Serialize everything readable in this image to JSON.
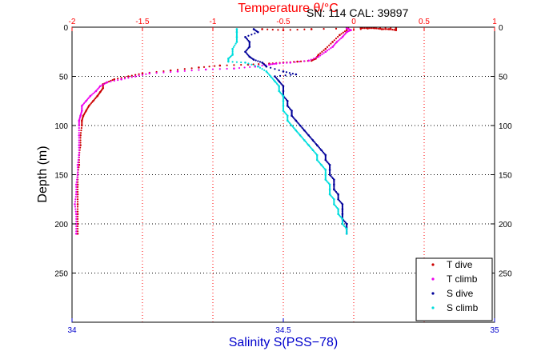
{
  "header": {
    "top_title": "Temperature θ/°C",
    "serial_text": "SN: 114  CAL: 39897"
  },
  "colors": {
    "temperature_axis": "#ff0000",
    "salinity_axis": "#0000cc",
    "grid": "#000000"
  },
  "chart_data": {
    "type": "scatter",
    "y_axis": {
      "label": "Depth (m)",
      "lim": [
        0,
        300
      ],
      "reversed": true,
      "ticks": [
        0,
        50,
        100,
        150,
        200,
        250
      ]
    },
    "x_axis_top": {
      "label": "Temperature θ/°C",
      "lim": [
        -2,
        1
      ],
      "ticks": [
        -2,
        -1.5,
        -1,
        -0.5,
        0,
        0.5,
        1
      ],
      "tick_labels": [
        "-2",
        "-1.5",
        "-1",
        "-0.5",
        "0",
        "0.5",
        "1"
      ]
    },
    "x_axis_bottom": {
      "label": "Salinity S(PSS−78)",
      "lim": [
        34,
        35
      ],
      "ticks": [
        34,
        34.5,
        35
      ],
      "tick_labels": [
        "34",
        "34.5",
        "35"
      ]
    },
    "grid": true,
    "legend": {
      "placement": "bottom-right",
      "entries": [
        "T dive",
        "T climb",
        "S dive",
        "S climb"
      ]
    },
    "series": [
      {
        "name": "T dive",
        "axis": "temperature",
        "color": "#cc0000",
        "points": [
          [
            -0.65,
            2
          ],
          [
            -0.5,
            3
          ],
          [
            -0.3,
            2
          ],
          [
            0.05,
            1
          ],
          [
            0.1,
            1
          ],
          [
            0.15,
            1
          ],
          [
            0.2,
            2
          ],
          [
            0.25,
            2
          ],
          [
            0.3,
            3
          ],
          [
            0.3,
            1
          ],
          [
            0.15,
            1
          ],
          [
            -0.05,
            3
          ],
          [
            -0.1,
            8
          ],
          [
            -0.15,
            15
          ],
          [
            -0.2,
            22
          ],
          [
            -0.25,
            28
          ],
          [
            -0.27,
            32
          ],
          [
            -0.3,
            34
          ],
          [
            -0.4,
            35
          ],
          [
            -0.5,
            36
          ],
          [
            -0.6,
            37
          ],
          [
            -0.75,
            38
          ],
          [
            -0.95,
            39
          ],
          [
            -1.1,
            41
          ],
          [
            -1.3,
            44
          ],
          [
            -1.5,
            47
          ],
          [
            -1.6,
            50
          ],
          [
            -1.7,
            53
          ],
          [
            -1.75,
            56
          ],
          [
            -1.78,
            58
          ],
          [
            -1.78,
            62
          ],
          [
            -1.8,
            66
          ],
          [
            -1.82,
            70
          ],
          [
            -1.85,
            75
          ],
          [
            -1.88,
            80
          ],
          [
            -1.9,
            85
          ],
          [
            -1.92,
            90
          ],
          [
            -1.93,
            95
          ],
          [
            -1.93,
            100
          ],
          [
            -1.94,
            110
          ],
          [
            -1.94,
            120
          ],
          [
            -1.95,
            130
          ],
          [
            -1.95,
            140
          ],
          [
            -1.96,
            150
          ],
          [
            -1.96,
            160
          ],
          [
            -1.96,
            170
          ],
          [
            -1.96,
            180
          ],
          [
            -1.96,
            190
          ],
          [
            -1.96,
            200
          ],
          [
            -1.96,
            210
          ]
        ]
      },
      {
        "name": "T climb",
        "axis": "temperature",
        "color": "#ee00ee",
        "points": [
          [
            -1.97,
            210
          ],
          [
            -1.97,
            200
          ],
          [
            -1.97,
            190
          ],
          [
            -1.98,
            180
          ],
          [
            -1.97,
            170
          ],
          [
            -1.97,
            160
          ],
          [
            -1.96,
            150
          ],
          [
            -1.96,
            140
          ],
          [
            -1.95,
            130
          ],
          [
            -1.95,
            120
          ],
          [
            -1.95,
            110
          ],
          [
            -1.95,
            100
          ],
          [
            -1.95,
            95
          ],
          [
            -1.94,
            90
          ],
          [
            -1.93,
            85
          ],
          [
            -1.93,
            80
          ],
          [
            -1.9,
            75
          ],
          [
            -1.87,
            70
          ],
          [
            -1.83,
            65
          ],
          [
            -1.8,
            60
          ],
          [
            -1.75,
            56
          ],
          [
            -1.65,
            53
          ],
          [
            -1.55,
            50
          ],
          [
            -1.45,
            47
          ],
          [
            -1.25,
            45
          ],
          [
            -1.05,
            43
          ],
          [
            -0.85,
            42
          ],
          [
            -0.7,
            40
          ],
          [
            -0.6,
            38
          ],
          [
            -0.55,
            37
          ],
          [
            -0.45,
            36
          ],
          [
            -0.32,
            34
          ],
          [
            -0.25,
            30
          ],
          [
            -0.2,
            25
          ],
          [
            -0.15,
            20
          ],
          [
            -0.12,
            15
          ],
          [
            -0.08,
            10
          ],
          [
            -0.05,
            5
          ],
          [
            -0.02,
            3
          ],
          [
            -0.05,
            1
          ]
        ]
      },
      {
        "name": "S dive",
        "axis": "salinity",
        "color": "#000099",
        "points": [
          [
            34.43,
            2
          ],
          [
            34.44,
            5
          ],
          [
            34.41,
            10
          ],
          [
            34.42,
            15
          ],
          [
            34.42,
            20
          ],
          [
            34.41,
            25
          ],
          [
            34.42,
            30
          ],
          [
            34.43,
            33
          ],
          [
            34.45,
            36
          ],
          [
            34.46,
            40
          ],
          [
            34.5,
            45
          ],
          [
            34.53,
            48
          ],
          [
            34.48,
            50
          ],
          [
            34.49,
            55
          ],
          [
            34.5,
            60
          ],
          [
            34.5,
            65
          ],
          [
            34.5,
            70
          ],
          [
            34.51,
            75
          ],
          [
            34.51,
            80
          ],
          [
            34.52,
            85
          ],
          [
            34.52,
            90
          ],
          [
            34.53,
            95
          ],
          [
            34.54,
            100
          ],
          [
            34.55,
            105
          ],
          [
            34.56,
            110
          ],
          [
            34.57,
            115
          ],
          [
            34.58,
            120
          ],
          [
            34.59,
            125
          ],
          [
            34.6,
            130
          ],
          [
            34.6,
            135
          ],
          [
            34.61,
            140
          ],
          [
            34.61,
            145
          ],
          [
            34.61,
            150
          ],
          [
            34.62,
            155
          ],
          [
            34.62,
            160
          ],
          [
            34.62,
            165
          ],
          [
            34.63,
            170
          ],
          [
            34.63,
            175
          ],
          [
            34.64,
            180
          ],
          [
            34.64,
            185
          ],
          [
            34.64,
            190
          ],
          [
            34.64,
            195
          ],
          [
            34.65,
            200
          ],
          [
            34.65,
            205
          ],
          [
            34.65,
            210
          ]
        ]
      },
      {
        "name": "S climb",
        "axis": "salinity",
        "color": "#00dddd",
        "points": [
          [
            34.65,
            210
          ],
          [
            34.65,
            205
          ],
          [
            34.64,
            200
          ],
          [
            34.64,
            195
          ],
          [
            34.63,
            190
          ],
          [
            34.63,
            185
          ],
          [
            34.62,
            180
          ],
          [
            34.62,
            175
          ],
          [
            34.61,
            170
          ],
          [
            34.61,
            165
          ],
          [
            34.61,
            160
          ],
          [
            34.6,
            155
          ],
          [
            34.6,
            150
          ],
          [
            34.6,
            145
          ],
          [
            34.59,
            140
          ],
          [
            34.58,
            135
          ],
          [
            34.58,
            130
          ],
          [
            34.57,
            125
          ],
          [
            34.56,
            120
          ],
          [
            34.55,
            115
          ],
          [
            34.54,
            110
          ],
          [
            34.53,
            105
          ],
          [
            34.52,
            100
          ],
          [
            34.51,
            95
          ],
          [
            34.51,
            90
          ],
          [
            34.5,
            85
          ],
          [
            34.5,
            80
          ],
          [
            34.5,
            75
          ],
          [
            34.5,
            70
          ],
          [
            34.49,
            65
          ],
          [
            34.49,
            60
          ],
          [
            34.48,
            55
          ],
          [
            34.47,
            50
          ],
          [
            34.46,
            45
          ],
          [
            34.44,
            40
          ],
          [
            34.41,
            36
          ],
          [
            34.37,
            35
          ],
          [
            34.37,
            32
          ],
          [
            34.38,
            28
          ],
          [
            34.38,
            22
          ],
          [
            34.39,
            15
          ],
          [
            34.39,
            10
          ],
          [
            34.39,
            5
          ],
          [
            34.39,
            2
          ]
        ]
      }
    ]
  }
}
